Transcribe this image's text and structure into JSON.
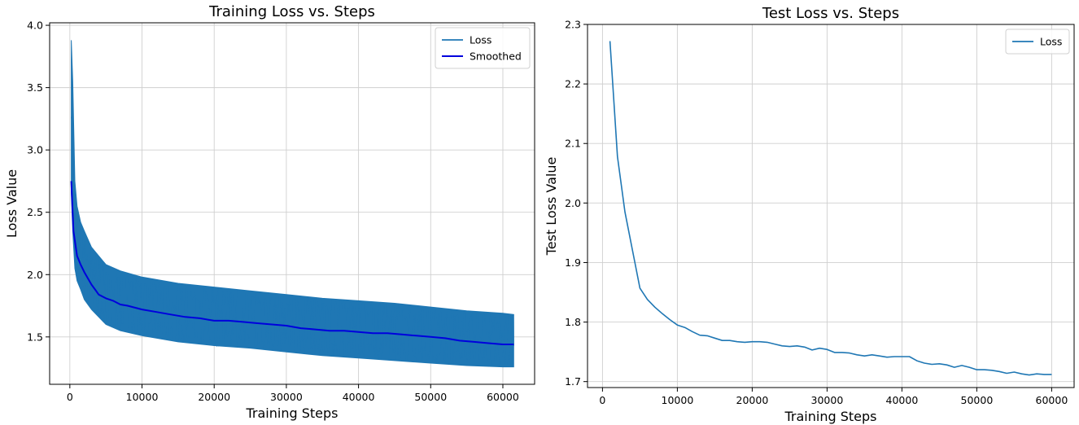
{
  "chart_data": [
    {
      "type": "line",
      "title": "Training Loss vs. Steps",
      "xlabel": "Training Steps",
      "ylabel": "Loss Value",
      "xlim": [
        -2800,
        64400
      ],
      "ylim": [
        1.12,
        4.02
      ],
      "xticks": [
        0,
        10000,
        20000,
        30000,
        40000,
        50000,
        60000
      ],
      "xtick_labels": [
        "0",
        "10000",
        "20000",
        "30000",
        "40000",
        "50000",
        "60000"
      ],
      "yticks": [
        1.5,
        2.0,
        2.5,
        3.0,
        3.5,
        4.0
      ],
      "ytick_labels": [
        "1.5",
        "2.0",
        "2.5",
        "3.0",
        "3.5",
        "4.0"
      ],
      "grid": true,
      "legend_position": "top-right",
      "series": [
        {
          "name": "Loss",
          "color": "#1f77b4",
          "x": [
            200,
            400,
            700,
            1000,
            1500,
            2000,
            3000,
            4000,
            5000,
            7000,
            10000,
            15000,
            20000,
            25000,
            30000,
            35000,
            40000,
            45000,
            50000,
            55000,
            60000,
            61500
          ],
          "y": [
            3.88,
            2.9,
            2.55,
            2.25,
            2.12,
            2.05,
            1.97,
            1.9,
            1.84,
            1.79,
            1.74,
            1.69,
            1.66,
            1.63,
            1.6,
            1.57,
            1.55,
            1.53,
            1.51,
            1.48,
            1.46,
            1.46
          ],
          "band_upper": [
            3.88,
            3.55,
            2.75,
            2.55,
            2.42,
            2.35,
            2.22,
            2.15,
            2.08,
            2.03,
            1.98,
            1.93,
            1.9,
            1.87,
            1.84,
            1.81,
            1.79,
            1.77,
            1.74,
            1.71,
            1.69,
            1.68
          ],
          "band_lower": [
            2.65,
            2.35,
            2.05,
            1.95,
            1.88,
            1.8,
            1.72,
            1.66,
            1.6,
            1.55,
            1.51,
            1.46,
            1.43,
            1.41,
            1.38,
            1.35,
            1.33,
            1.31,
            1.29,
            1.27,
            1.26,
            1.26
          ]
        },
        {
          "name": "Smoothed",
          "color": "#0000dd",
          "x": [
            200,
            500,
            1000,
            1500,
            2000,
            2500,
            3000,
            3500,
            4000,
            5000,
            6000,
            7000,
            8000,
            10000,
            12000,
            14000,
            16000,
            18000,
            20000,
            22000,
            24000,
            26000,
            28000,
            30000,
            32000,
            34000,
            36000,
            38000,
            40000,
            42000,
            44000,
            46000,
            48000,
            50000,
            52000,
            54000,
            56000,
            58000,
            60000,
            61500
          ],
          "y": [
            2.75,
            2.35,
            2.15,
            2.08,
            2.02,
            1.97,
            1.92,
            1.88,
            1.84,
            1.81,
            1.79,
            1.76,
            1.75,
            1.72,
            1.7,
            1.68,
            1.66,
            1.65,
            1.63,
            1.63,
            1.62,
            1.61,
            1.6,
            1.59,
            1.57,
            1.56,
            1.55,
            1.55,
            1.54,
            1.53,
            1.53,
            1.52,
            1.51,
            1.5,
            1.49,
            1.47,
            1.46,
            1.45,
            1.44,
            1.44
          ]
        }
      ]
    },
    {
      "type": "line",
      "title": "Test Loss vs. Steps",
      "xlabel": "Training Steps",
      "ylabel": "Test Loss Value",
      "xlim": [
        -2000,
        63000
      ],
      "ylim": [
        1.69,
        2.3
      ],
      "xticks": [
        0,
        10000,
        20000,
        30000,
        40000,
        50000,
        60000
      ],
      "xtick_labels": [
        "0",
        "10000",
        "20000",
        "30000",
        "40000",
        "50000",
        "60000"
      ],
      "yticks": [
        1.7,
        1.8,
        1.9,
        2.0,
        2.1,
        2.2,
        2.3
      ],
      "ytick_labels": [
        "1.7",
        "1.8",
        "1.9",
        "2.0",
        "2.1",
        "2.2",
        "2.3"
      ],
      "grid": true,
      "legend_position": "top-right",
      "series": [
        {
          "name": "Loss",
          "color": "#1f77b4",
          "x": [
            1000,
            2000,
            3000,
            4000,
            5000,
            6000,
            7000,
            8000,
            9000,
            10000,
            11000,
            12000,
            13000,
            14000,
            15000,
            16000,
            17000,
            18000,
            19000,
            20000,
            21000,
            22000,
            23000,
            24000,
            25000,
            26000,
            27000,
            28000,
            29000,
            30000,
            31000,
            32000,
            33000,
            34000,
            35000,
            36000,
            37000,
            38000,
            39000,
            40000,
            41000,
            42000,
            43000,
            44000,
            45000,
            46000,
            47000,
            48000,
            49000,
            50000,
            51000,
            52000,
            53000,
            54000,
            55000,
            56000,
            57000,
            58000,
            59000,
            60000
          ],
          "y": [
            2.272,
            2.078,
            1.985,
            1.921,
            1.857,
            1.838,
            1.825,
            1.814,
            1.804,
            1.795,
            1.791,
            1.784,
            1.778,
            1.777,
            1.773,
            1.769,
            1.769,
            1.767,
            1.766,
            1.767,
            1.767,
            1.766,
            1.763,
            1.76,
            1.759,
            1.76,
            1.758,
            1.753,
            1.756,
            1.754,
            1.749,
            1.749,
            1.748,
            1.745,
            1.743,
            1.745,
            1.743,
            1.741,
            1.742,
            1.742,
            1.742,
            1.735,
            1.731,
            1.729,
            1.73,
            1.728,
            1.724,
            1.727,
            1.724,
            1.72,
            1.72,
            1.719,
            1.717,
            1.714,
            1.716,
            1.713,
            1.711,
            1.713,
            1.712,
            1.712
          ]
        }
      ]
    }
  ]
}
